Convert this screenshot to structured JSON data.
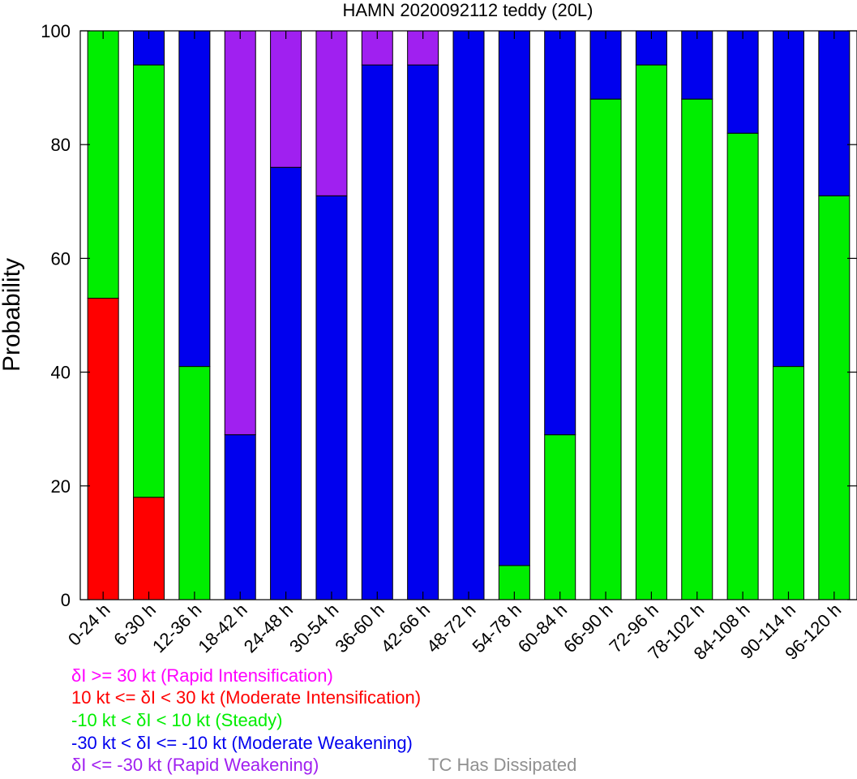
{
  "chart_data": {
    "type": "bar",
    "stacked": true,
    "title": "HAMN 2020092112 teddy (20L)",
    "xlabel": "",
    "ylabel": "Probability",
    "ylim": [
      0,
      100
    ],
    "yticks": [
      0,
      20,
      40,
      60,
      80,
      100
    ],
    "categories": [
      "0-24 h",
      "6-30 h",
      "12-36 h",
      "18-42 h",
      "24-48 h",
      "30-54 h",
      "36-60 h",
      "42-66 h",
      "48-72 h",
      "54-78 h",
      "60-84 h",
      "66-90 h",
      "72-96 h",
      "78-102 h",
      "84-108 h",
      "90-114 h",
      "96-120 h"
    ],
    "series": [
      {
        "key": "mi",
        "color": "#ff0000",
        "values": [
          53,
          18,
          0,
          0,
          0,
          0,
          0,
          0,
          0,
          0,
          0,
          0,
          0,
          0,
          0,
          0,
          0
        ]
      },
      {
        "key": "steady",
        "color": "#00ee00",
        "values": [
          47,
          76,
          41,
          0,
          0,
          0,
          0,
          0,
          0,
          6,
          29,
          88,
          94,
          88,
          82,
          41,
          71
        ]
      },
      {
        "key": "mw",
        "color": "#0000ee",
        "values": [
          0,
          6,
          59,
          29,
          76,
          71,
          94,
          94,
          100,
          94,
          71,
          12,
          6,
          12,
          18,
          59,
          29
        ]
      },
      {
        "key": "rw",
        "color": "#a020f0",
        "values": [
          0,
          0,
          0,
          71,
          24,
          29,
          6,
          6,
          0,
          0,
          0,
          0,
          0,
          0,
          0,
          0,
          0
        ]
      }
    ],
    "legend": [
      {
        "text": "δI >= 30 kt (Rapid Intensification)",
        "color": "#ff00ff"
      },
      {
        "text": "10 kt <= δI < 30 kt (Moderate Intensification)",
        "color": "#ff0000"
      },
      {
        "text": "-10 kt < δI < 10 kt (Steady)",
        "color": "#00ee00"
      },
      {
        "text": "-30 kt < δI <= -10 kt (Moderate Weakening)",
        "color": "#0000ee"
      },
      {
        "text": "δI <= -30 kt (Rapid Weakening)",
        "color": "#a020f0"
      }
    ],
    "note": {
      "text": "TC Has Dissipated",
      "color": "#909090"
    },
    "legend_position": "bottom-left",
    "grid": false
  }
}
